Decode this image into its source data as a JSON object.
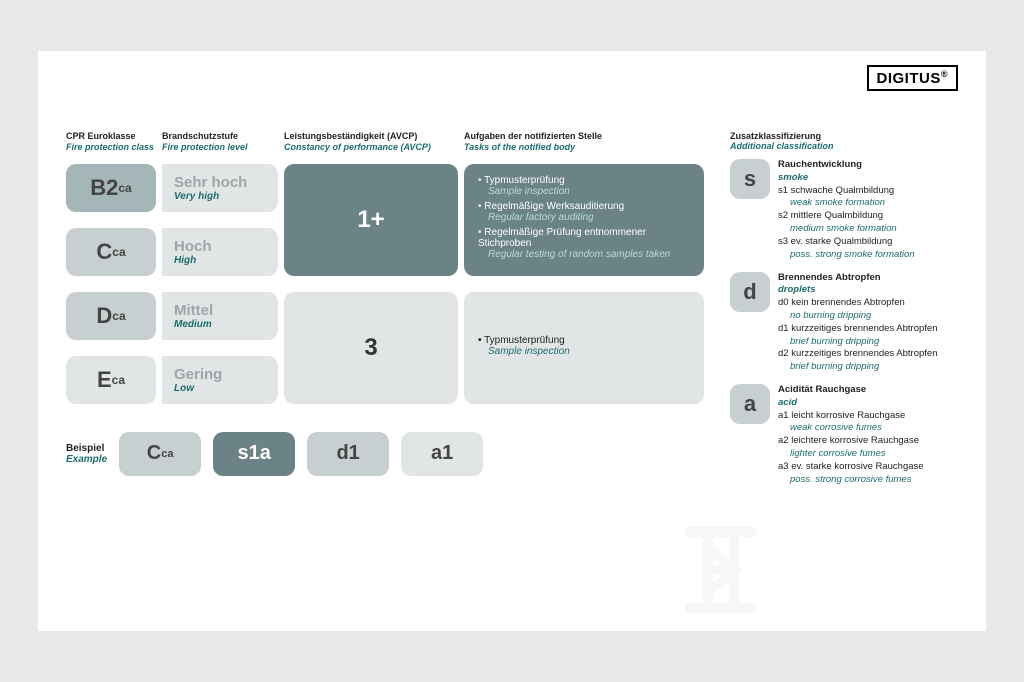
{
  "logo": "DIGITUS",
  "headers": {
    "col1": {
      "de": "CPR Euroklasse",
      "en": "Fire protection class"
    },
    "col2": {
      "de": "Brandschutzstufe",
      "en": "Fire protection level"
    },
    "col3": {
      "de": "Leistungsbeständigkeit (AVCP)",
      "en": "Constancy of performance (AVCP)"
    },
    "col4": {
      "de": "Aufgaben der notifizierten Stelle",
      "en": "Tasks of the notified body"
    }
  },
  "colors": {
    "dark_teal": "#6b8387",
    "med_gray": "#a4b6b8",
    "lightmed_gray": "#c8cfd0",
    "light_gray": "#e2e5e6",
    "teal_text": "#1b6d6d"
  },
  "block1": {
    "classes": [
      {
        "main": "B2",
        "sub": "ca",
        "color": "#a4b6b8"
      },
      {
        "main": "C",
        "sub": "ca",
        "color": "#c8cfd0"
      }
    ],
    "levels": [
      {
        "de": "Sehr hoch",
        "en": "Very high"
      },
      {
        "de": "Hoch",
        "en": "High"
      }
    ],
    "avcp": "1+",
    "avcp_color": "#6b8387",
    "tasks_color": "#6b8387",
    "tasks": [
      {
        "de": "Typmusterprüfung",
        "en": "Sample inspection"
      },
      {
        "de": "Regelmäßige Werksauditierung",
        "en": "Regular factory auditing"
      },
      {
        "de": "Regelmäßige Prüfung entnommener Stichproben",
        "en": "Regular testing of random samples taken"
      }
    ]
  },
  "block2": {
    "classes": [
      {
        "main": "D",
        "sub": "ca",
        "color": "#c8cfd0"
      },
      {
        "main": "E",
        "sub": "ca",
        "color": "#e2e5e6"
      }
    ],
    "levels": [
      {
        "de": "Mittel",
        "en": "Medium"
      },
      {
        "de": "Gering",
        "en": "Low"
      }
    ],
    "avcp": "3",
    "avcp_color": "#e2e5e6",
    "tasks_color": "#e2e5e6",
    "tasks": [
      {
        "de": "Typmusterprüfung",
        "en": "Sample inspection"
      }
    ]
  },
  "example": {
    "label_de": "Beispiel",
    "label_en": "Example",
    "boxes": [
      {
        "text": "C",
        "sub": "ca",
        "color": "#c8cfd0"
      },
      {
        "text": "s1a",
        "color": "#6b8387"
      },
      {
        "text": "d1",
        "color": "#c8cfd0"
      },
      {
        "text": "a1",
        "color": "#e2e5e6"
      }
    ]
  },
  "right_header": {
    "de": "Zusatzklassifizierung",
    "en": "Additional classification"
  },
  "additional": [
    {
      "letter": "s",
      "group_de": "Rauchentwicklung",
      "group_en": "smoke",
      "items": [
        {
          "de": "s1 schwache Qualmbildung",
          "en": "weak smoke formation"
        },
        {
          "de": "s2 mittlere Qualmbildung",
          "en": "medium smoke formation"
        },
        {
          "de": "s3 ev. starke Qualmbildung",
          "en": "poss. strong smoke formation"
        }
      ]
    },
    {
      "letter": "d",
      "group_de": "Brennendes Abtropfen",
      "group_en": "droplets",
      "items": [
        {
          "de": "d0 kein brennendes Abtropfen",
          "en": "no burning dripping"
        },
        {
          "de": "d1 kurzzeitiges brennendes Abtropfen",
          "en": "brief burning dripping"
        },
        {
          "de": "d2 kurzzeitiges brennendes Abtropfen",
          "en": "brief burning dripping"
        }
      ]
    },
    {
      "letter": "a",
      "group_de": "Acidität Rauchgase",
      "group_en": "acid",
      "items": [
        {
          "de": "a1 leicht korrosive Rauchgase",
          "en": "weak corrosive fumes"
        },
        {
          "de": "a2 leichtere korrosive Rauchgase",
          "en": "lighter corrosive fumes"
        },
        {
          "de": "a3 ev. starke korrosive Rauchgase",
          "en": "poss. strong corrosive fumes"
        }
      ]
    }
  ]
}
